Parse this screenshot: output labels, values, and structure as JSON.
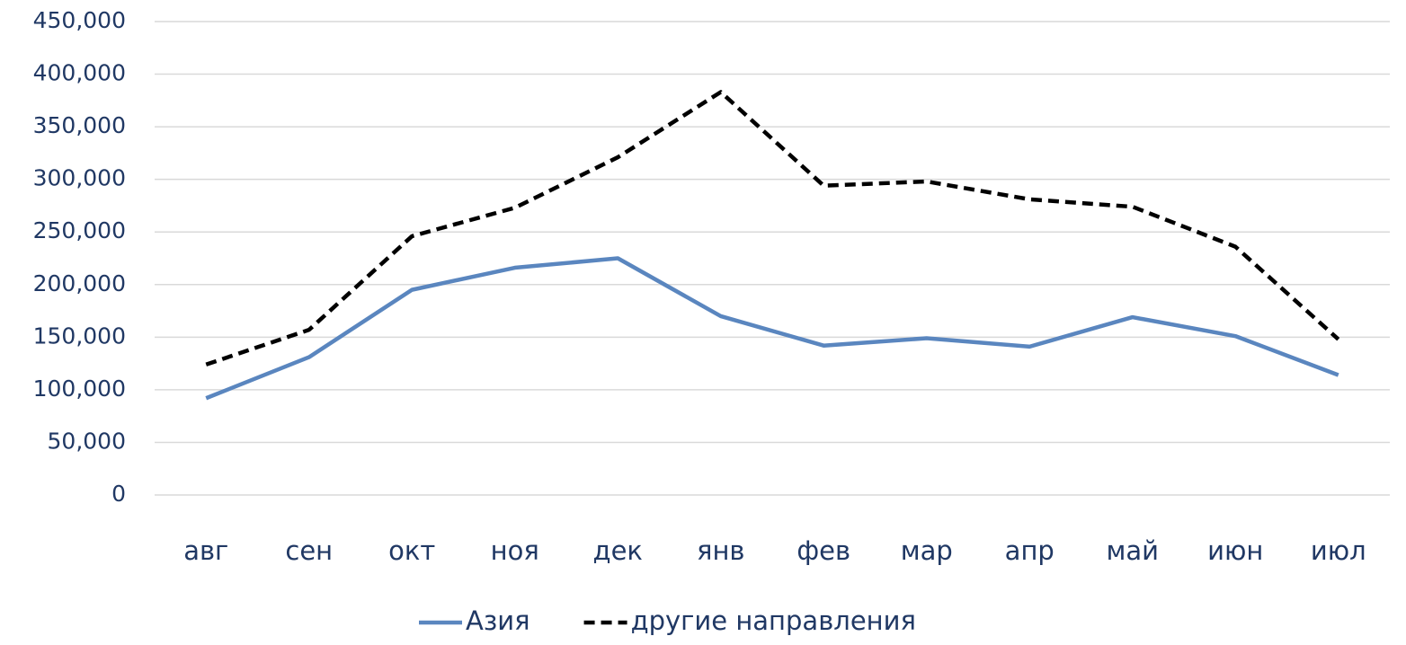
{
  "chart_data": {
    "type": "line",
    "categories": [
      "авг",
      "сен",
      "окт",
      "ноя",
      "дек",
      "янв",
      "фев",
      "мар",
      "апр",
      "май",
      "июн",
      "июл"
    ],
    "series": [
      {
        "name": "Азия",
        "color": "#5a86bf",
        "line_style": "solid",
        "values": [
          92000,
          131000,
          195000,
          216000,
          225000,
          170000,
          142000,
          149000,
          141000,
          169000,
          151000,
          114000
        ]
      },
      {
        "name": "другие направления",
        "color": "#000000",
        "line_style": "dashed",
        "values": [
          124000,
          157000,
          246000,
          273000,
          321000,
          383000,
          294000,
          298000,
          281000,
          274000,
          236000,
          148000
        ]
      }
    ],
    "ylim": [
      0,
      450000
    ],
    "yticks": [
      0,
      {
        "value": 50000,
        "label": "50,000"
      },
      {
        "value": 100000,
        "label": "100,000"
      },
      {
        "value": 150000,
        "label": "150,000"
      },
      {
        "value": 200000,
        "label": "200,000"
      },
      {
        "value": 250000,
        "label": "250,000"
      },
      {
        "value": 300000,
        "label": "300,000"
      },
      {
        "value": 350000,
        "label": "350,000"
      },
      {
        "value": 400000,
        "label": "400,000"
      },
      {
        "value": 450000,
        "label": "450,000"
      }
    ],
    "grid": true,
    "legend": "bottom"
  }
}
